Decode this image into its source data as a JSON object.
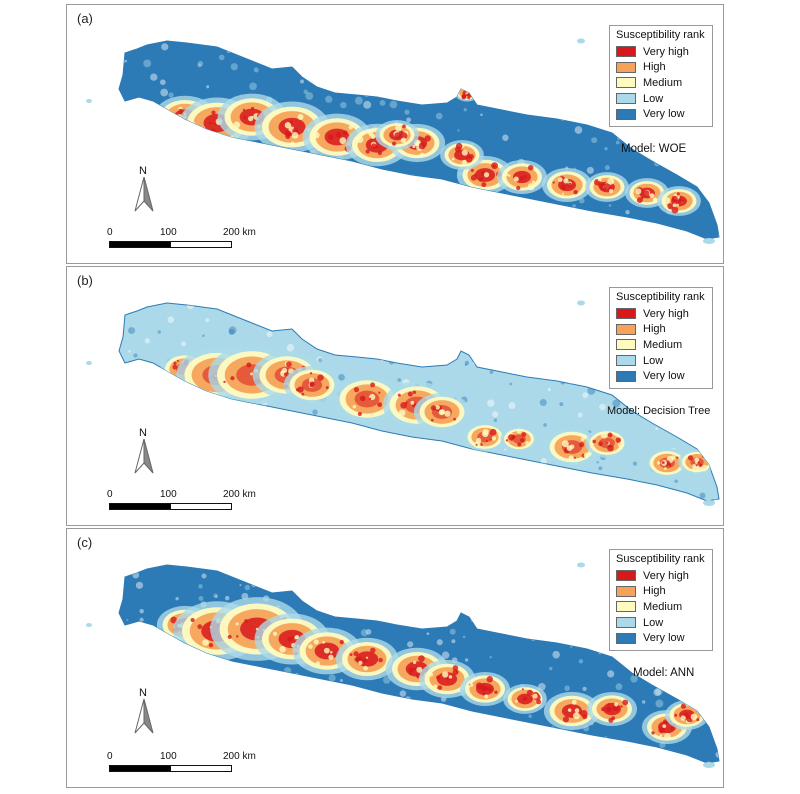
{
  "panels": [
    {
      "label": "(a)",
      "model": "Model: WOE",
      "variant": 0
    },
    {
      "label": "(b)",
      "model": "Model: Decision Tree",
      "variant": 1
    },
    {
      "label": "(c)",
      "model": "Model: ANN",
      "variant": 2
    }
  ],
  "legend": {
    "title": "Susceptibility rank",
    "items": [
      {
        "label": "Very high",
        "color": "#d7191c"
      },
      {
        "label": "High",
        "color": "#f5a35a"
      },
      {
        "label": "Medium",
        "color": "#fffbbf"
      },
      {
        "label": "Low",
        "color": "#abd9e9"
      },
      {
        "label": "Very low",
        "color": "#2c7bb6"
      }
    ]
  },
  "north_arrow": {
    "label": "N"
  },
  "scale_bar": {
    "ticks": [
      "0",
      "100",
      "200 km"
    ]
  }
}
